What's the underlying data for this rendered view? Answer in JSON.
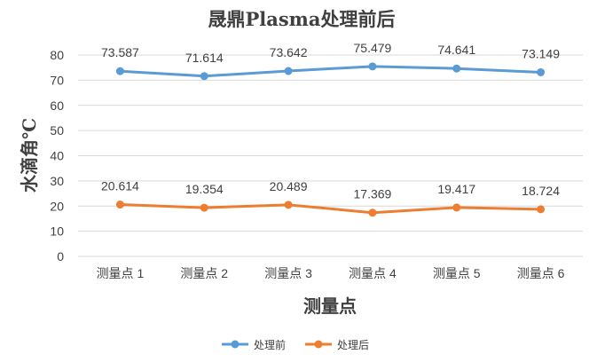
{
  "chart_data": {
    "type": "line",
    "title": "晟鼎Plasma处理前后",
    "xlabel": "测量点",
    "ylabel": "水滴角℃",
    "categories": [
      "测量点 1",
      "测量点 2",
      "测量点 3",
      "测量点 4",
      "测量点 5",
      "测量点 6"
    ],
    "ylim": [
      0,
      80
    ],
    "yticks": [
      0,
      10,
      20,
      30,
      40,
      50,
      60,
      70,
      80
    ],
    "grid": true,
    "legend": "bottom",
    "series": [
      {
        "name": "处理前",
        "color": "#5b9bd5",
        "values": [
          73.587,
          71.614,
          73.642,
          75.479,
          74.641,
          73.149
        ],
        "labels": [
          "73.587",
          "71.614",
          "73.642",
          "75.479",
          "74.641",
          "73.149"
        ]
      },
      {
        "name": "处理后",
        "color": "#ed7d31",
        "values": [
          20.614,
          19.354,
          20.489,
          17.369,
          19.417,
          18.724
        ],
        "labels": [
          "20.614",
          "19.354",
          "20.489",
          "17.369",
          "19.417",
          "18.724"
        ]
      }
    ]
  }
}
